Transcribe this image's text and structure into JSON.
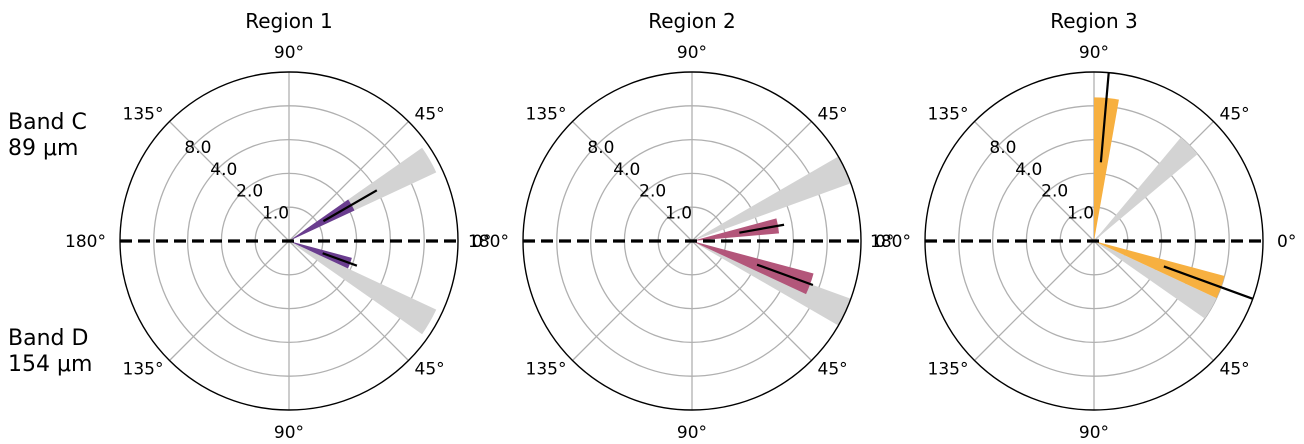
{
  "row_labels": {
    "top": {
      "line1": "Band C",
      "line2": "89 μm"
    },
    "bottom": {
      "line1": "Band D",
      "line2": "154 μm"
    }
  },
  "colors": {
    "ring": "#b0b0b0",
    "reference_wedge": "#d3d3d3",
    "region1": "#6a3d8f",
    "region2": "#b3567a",
    "region3": "#f7b040",
    "line": "#000000"
  },
  "chart_data": [
    {
      "type": "polar-bar",
      "title": "Region 1",
      "radial_ticks": [
        1.0,
        2.0,
        4.0,
        8.0
      ],
      "radial_scale": "log",
      "angle_tick_labels": [
        "0°",
        "45°",
        "90°",
        "135°",
        "180°",
        "135°",
        "90°",
        "45°"
      ],
      "reference_wedges": [
        {
          "band": "Band C",
          "angle_deg": 30,
          "width_deg": 10,
          "value": 14
        },
        {
          "band": "Band D",
          "angle_deg": -30,
          "width_deg": 10,
          "value": 14
        }
      ],
      "series": [
        {
          "band": "Band C",
          "angle_deg": 30,
          "width_deg": 10,
          "value": 2.2,
          "line_value": 4.0
        },
        {
          "band": "Band D",
          "angle_deg": -20,
          "width_deg": 10,
          "value": 1.9,
          "line_value": 2.2
        }
      ]
    },
    {
      "type": "polar-bar",
      "title": "Region 2",
      "radial_ticks": [
        1.0,
        2.0,
        4.0,
        8.0
      ],
      "radial_scale": "log",
      "angle_tick_labels": [
        "0°",
        "45°",
        "90°",
        "135°",
        "180°",
        "135°",
        "90°",
        "45°"
      ],
      "reference_wedges": [
        {
          "band": "Band C",
          "angle_deg": 25,
          "width_deg": 10,
          "value": 16
        },
        {
          "band": "Band D",
          "angle_deg": -25,
          "width_deg": 10,
          "value": 16
        }
      ],
      "series": [
        {
          "band": "Band C",
          "angle_deg": 10,
          "width_deg": 10,
          "value": 3.0,
          "line_value": 3.4
        },
        {
          "band": "Band D",
          "angle_deg": -20,
          "width_deg": 10,
          "value": 6.6,
          "line_value": 7.0
        }
      ]
    },
    {
      "type": "polar-bar",
      "title": "Region 3",
      "radial_ticks": [
        1.0,
        2.0,
        4.0,
        8.0
      ],
      "radial_scale": "log",
      "angle_tick_labels": [
        "0°",
        "45°",
        "90°",
        "135°",
        "180°",
        "135°",
        "90°",
        "45°"
      ],
      "reference_wedges": [
        {
          "band": "Band C",
          "angle_deg": 45,
          "width_deg": 10,
          "value": 8.0
        },
        {
          "band": "Band D",
          "angle_deg": -30,
          "width_deg": 10,
          "value": 8.0
        }
      ],
      "series": [
        {
          "band": "Band C",
          "angle_deg": 85,
          "width_deg": 10,
          "value": 9.5,
          "line_value": 16
        },
        {
          "band": "Band D",
          "angle_deg": -20,
          "width_deg": 10,
          "value": 8.0,
          "line_value": 16
        }
      ]
    }
  ]
}
